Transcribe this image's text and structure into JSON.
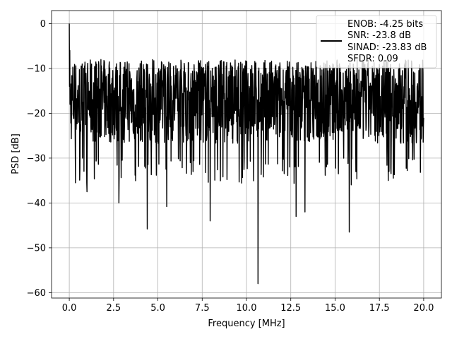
{
  "chart_data": {
    "type": "line",
    "xlabel": "Frequency [MHz]",
    "ylabel": "PSD [dB]",
    "xlim": [
      -1.0,
      21.0
    ],
    "ylim": [
      -61.2,
      2.9
    ],
    "xticks": [
      0.0,
      2.5,
      5.0,
      7.5,
      10.0,
      12.5,
      15.0,
      17.5,
      20.0
    ],
    "xtick_labels": [
      "0.0",
      "2.5",
      "5.0",
      "7.5",
      "10.0",
      "12.5",
      "15.0",
      "17.5",
      "20.0"
    ],
    "yticks": [
      0,
      -10,
      -20,
      -30,
      -40,
      -50,
      -60
    ],
    "ytick_labels": [
      "0",
      "−10",
      "−20",
      "−30",
      "−40",
      "−50",
      "−60"
    ],
    "grid": true,
    "legend_position": "top-right",
    "legend_lines": [
      "ENOB: -4.25 bits",
      "SNR: -23.8 dB",
      "SINAD: -23.83 dB",
      "SFDR: 0.09"
    ],
    "series": [
      {
        "color": "#000000",
        "x_range": [
          0.0,
          20.0
        ],
        "noise_band_dB": [
          -30,
          -8
        ],
        "peak": {
          "x": 0.0,
          "y": 0.0
        },
        "deep_dips": [
          {
            "x": 0.35,
            "y": -35.5
          },
          {
            "x": 1.0,
            "y": -37.5
          },
          {
            "x": 2.8,
            "y": -40.0
          },
          {
            "x": 4.4,
            "y": -45.8
          },
          {
            "x": 5.5,
            "y": -40.8
          },
          {
            "x": 7.95,
            "y": -44.0
          },
          {
            "x": 10.65,
            "y": -58.0
          },
          {
            "x": 12.8,
            "y": -43.0
          },
          {
            "x": 13.3,
            "y": -42.0
          },
          {
            "x": 15.8,
            "y": -46.5
          },
          {
            "x": 18.0,
            "y": -35.0
          }
        ]
      }
    ]
  }
}
